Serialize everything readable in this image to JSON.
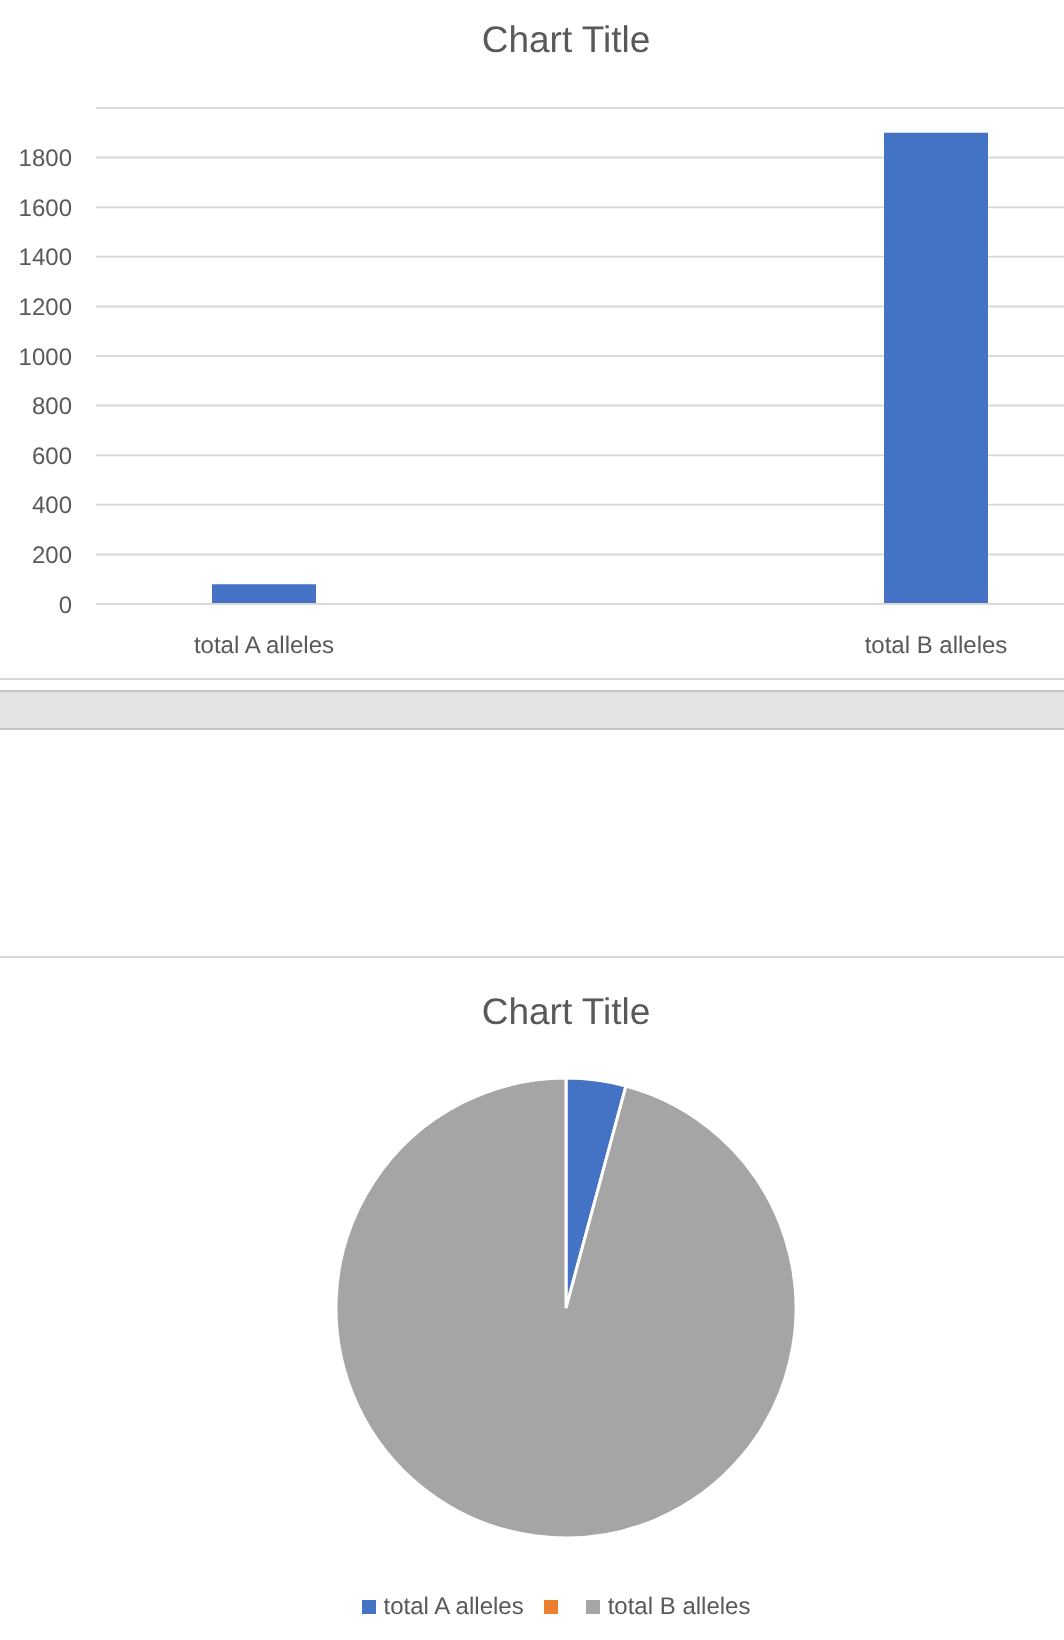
{
  "chart_data": [
    {
      "type": "bar",
      "title": "Chart Title",
      "categories": [
        "total A alleles",
        null,
        "total B alleles"
      ],
      "values": [
        80,
        null,
        1900
      ],
      "color": "#4472c4",
      "ylim": [
        0,
        2000
      ],
      "yticks": [
        0,
        200,
        400,
        600,
        800,
        1000,
        1200,
        1400,
        1600,
        1800,
        {
          "value": 2000,
          "label": null
        }
      ],
      "grid": "y"
    },
    {
      "type": "pie",
      "title": "Chart Title",
      "categories": [
        "total A alleles",
        null,
        "total B alleles"
      ],
      "values": [
        4.2,
        0,
        95.8
      ],
      "colors": [
        "#4472c4",
        "#ed7d31",
        "#a5a5a5"
      ],
      "legend": "bottom"
    }
  ]
}
